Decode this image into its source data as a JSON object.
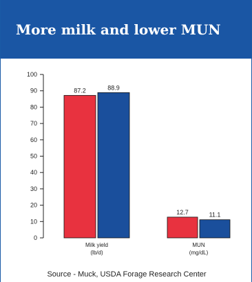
{
  "slide": {
    "title": "More milk and lower MUN",
    "source": "Source - Muck, USDA Forage Research Center"
  },
  "colors": {
    "header_bg": "#1a56a4",
    "series_a": "#e8323f",
    "series_b": "#1a4f9c"
  },
  "chart_data": {
    "type": "bar",
    "categories": [
      {
        "line1": "Milk yield",
        "line2": "(lb/d)"
      },
      {
        "line1": "MUN",
        "line2": "(mg/dL)"
      }
    ],
    "series": [
      {
        "color": "#e8323f",
        "values": [
          87.2,
          12.7
        ]
      },
      {
        "color": "#1a4f9c",
        "values": [
          88.9,
          11.1
        ]
      }
    ],
    "ylim": [
      0,
      100
    ],
    "yticks": [
      0,
      10,
      20,
      30,
      40,
      50,
      60,
      70,
      80,
      90,
      100
    ],
    "data_labels": true,
    "legend": "none",
    "grid": false
  }
}
